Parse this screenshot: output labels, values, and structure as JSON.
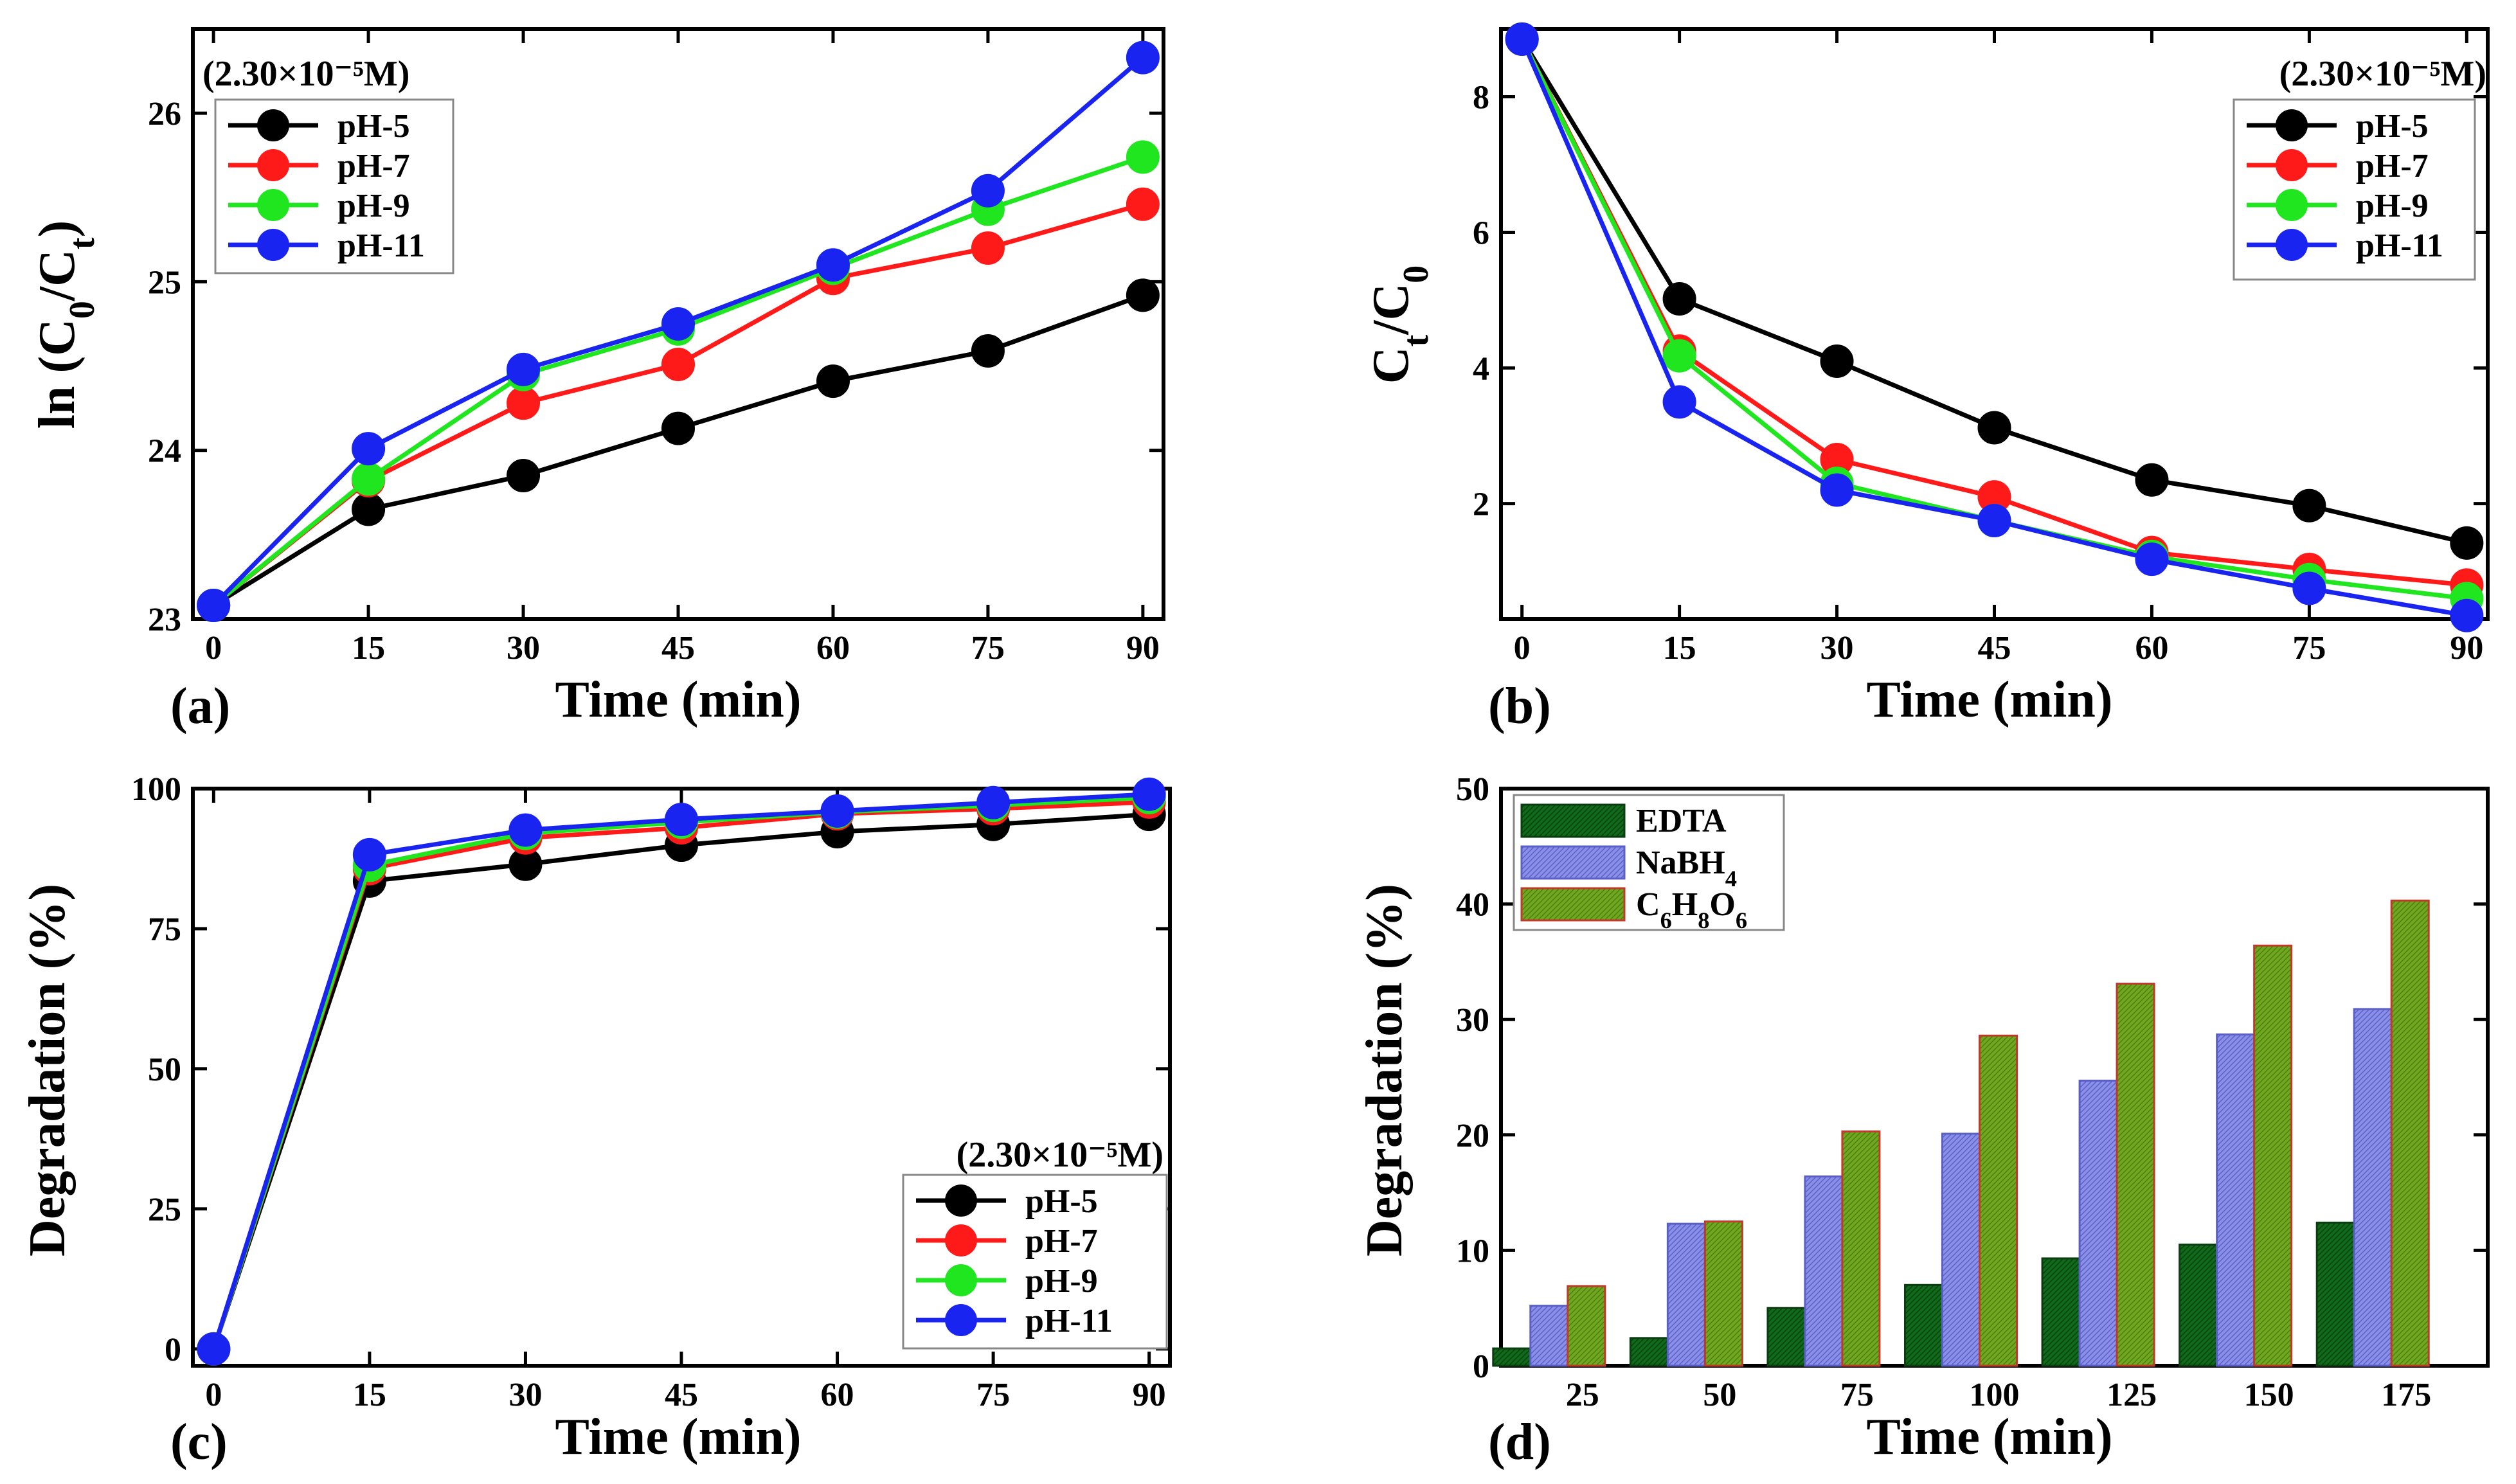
{
  "colors": {
    "pH-5": "#000000",
    "pH-7": "#ff1a1a",
    "pH-9": "#1fe61f",
    "pH-11": "#1a24f0",
    "EDTA": "#0f6b1a",
    "NaBH4": "#7b80e6",
    "C6H8O6": "#6aa31c",
    "bar_edge_c6": "#c0392b"
  },
  "chart_data": [
    {
      "panel": "a",
      "type": "line",
      "letter": "(a)",
      "concentration": "(2.30×10⁻⁵M)",
      "legend_position": "upper-left",
      "xlabel": "Time (min)",
      "ylabel": "ln (C0/Ct)",
      "ylabel_parts": [
        "ln (C",
        "0",
        "/C",
        "t",
        ")"
      ],
      "x": [
        0,
        15,
        30,
        45,
        60,
        75,
        90
      ],
      "xticks": [
        "0",
        "15",
        "30",
        "45",
        "60",
        "75",
        "90"
      ],
      "xlim": [
        -2,
        92
      ],
      "ylim": [
        23,
        26.5
      ],
      "yticks": [
        23,
        24,
        25,
        26
      ],
      "yticklabels": [
        "23",
        "24",
        "25",
        "26"
      ],
      "series": [
        {
          "name": "pH-5",
          "values": [
            23.08,
            23.65,
            23.85,
            24.13,
            24.41,
            24.59,
            24.92
          ]
        },
        {
          "name": "pH-7",
          "values": [
            23.08,
            23.82,
            24.28,
            24.51,
            25.02,
            25.2,
            25.46
          ]
        },
        {
          "name": "pH-9",
          "values": [
            23.08,
            23.83,
            24.45,
            24.72,
            25.08,
            25.43,
            25.74
          ]
        },
        {
          "name": "pH-11",
          "values": [
            23.08,
            24.01,
            24.48,
            24.75,
            25.1,
            25.54,
            26.33
          ]
        }
      ]
    },
    {
      "panel": "b",
      "type": "line",
      "letter": "(b)",
      "concentration": "(2.30×10⁻⁵M)",
      "legend_position": "upper-right",
      "xlabel": "Time (min)",
      "ylabel": "Ct/C0",
      "ylabel_parts": [
        "C",
        "t",
        "/C",
        "0",
        ""
      ],
      "x": [
        0,
        15,
        30,
        45,
        60,
        75,
        90
      ],
      "xticks": [
        "0",
        "15",
        "30",
        "45",
        "60",
        "75",
        "90"
      ],
      "xlim": [
        -2,
        92
      ],
      "ylim": [
        0.3,
        9.0
      ],
      "yticks": [
        2,
        4,
        6,
        8
      ],
      "yticklabels": [
        "2",
        "4",
        "6",
        "8"
      ],
      "series": [
        {
          "name": "pH-5",
          "values": [
            8.85,
            5.02,
            4.1,
            3.12,
            2.35,
            1.97,
            1.42
          ]
        },
        {
          "name": "pH-7",
          "values": [
            8.85,
            4.25,
            2.65,
            2.1,
            1.28,
            1.03,
            0.8
          ]
        },
        {
          "name": "pH-9",
          "values": [
            8.85,
            4.18,
            2.3,
            1.75,
            1.22,
            0.88,
            0.6
          ]
        },
        {
          "name": "pH-11",
          "values": [
            8.85,
            3.5,
            2.2,
            1.75,
            1.18,
            0.75,
            0.35
          ]
        }
      ]
    },
    {
      "panel": "c",
      "type": "line",
      "letter": "(c)",
      "concentration": "(2.30×10⁻⁵M)",
      "legend_position": "lower-right",
      "xlabel": "Time (min)",
      "ylabel": "Degradation (%)",
      "ylabel_parts": [
        "Degradation (%)",
        "",
        "",
        "",
        ""
      ],
      "x": [
        0,
        15,
        30,
        45,
        60,
        75,
        90
      ],
      "xticks": [
        "0",
        "15",
        "30",
        "45",
        "60",
        "75",
        "90"
      ],
      "xlim": [
        -2,
        92
      ],
      "ylim": [
        -3,
        100
      ],
      "yticks": [
        0,
        25,
        50,
        75,
        100
      ],
      "yticklabels": [
        "0",
        "25",
        "50",
        "75",
        "100"
      ],
      "series": [
        {
          "name": "pH-5",
          "values": [
            0,
            83.5,
            86.5,
            89.9,
            92.3,
            93.6,
            95.4
          ]
        },
        {
          "name": "pH-7",
          "values": [
            0,
            85.7,
            91.2,
            93.0,
            95.5,
            96.4,
            97.6
          ]
        },
        {
          "name": "pH-9",
          "values": [
            0,
            86.3,
            92.0,
            94.0,
            95.8,
            97.0,
            98.4
          ]
        },
        {
          "name": "pH-11",
          "values": [
            0,
            88.2,
            92.6,
            94.5,
            96.0,
            97.5,
            99.0
          ]
        }
      ]
    },
    {
      "panel": "d",
      "type": "bar",
      "letter": "(d)",
      "legend_position": "upper-left",
      "xlabel": "Time (min)",
      "ylabel": "Degradation (%)",
      "categories": [
        "25",
        "50",
        "75",
        "100",
        "125",
        "150",
        "175"
      ],
      "ylim": [
        0,
        50
      ],
      "yticks": [
        0,
        10,
        20,
        30,
        40,
        50
      ],
      "yticklabels": [
        "0",
        "10",
        "20",
        "30",
        "40",
        "50"
      ],
      "series": [
        {
          "name": "EDTA",
          "label_parts": [
            "EDTA"
          ],
          "values": [
            1.5,
            2.4,
            5.0,
            7.0,
            9.3,
            10.5,
            12.4
          ]
        },
        {
          "name": "NaBH4",
          "label_parts": [
            "NaBH",
            "4"
          ],
          "values": [
            5.2,
            12.3,
            16.4,
            20.1,
            24.7,
            28.7,
            30.9
          ]
        },
        {
          "name": "C6H8O6",
          "label_parts": [
            "C",
            "6",
            "H",
            "8",
            "O",
            "6"
          ],
          "values": [
            6.9,
            12.5,
            20.3,
            28.6,
            33.1,
            36.4,
            40.3
          ]
        }
      ]
    }
  ]
}
